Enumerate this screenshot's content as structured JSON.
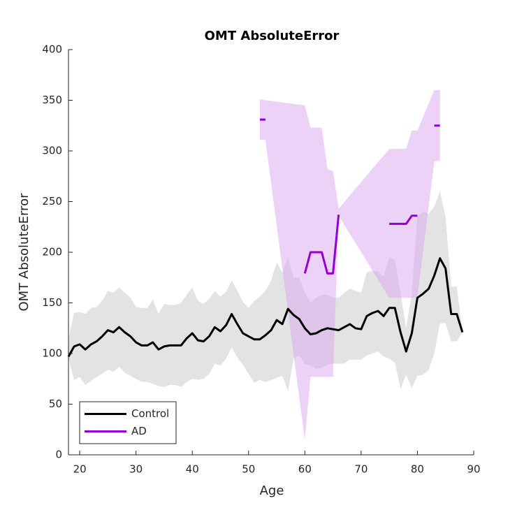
{
  "chart_data": {
    "type": "line",
    "title": "OMT AbsoluteError",
    "x_label": "Age",
    "y_label": "OMT AbsoluteError",
    "xlim": [
      18,
      90
    ],
    "ylim": [
      0,
      400
    ],
    "xticks": [
      20,
      30,
      40,
      50,
      60,
      70,
      80,
      90
    ],
    "yticks": [
      0,
      50,
      100,
      150,
      200,
      250,
      300,
      350,
      400
    ],
    "legend": "lower left",
    "series": [
      {
        "name": "Control",
        "color": "#000000",
        "band_color": "#c8c8c8",
        "x": [
          18,
          19,
          20,
          21,
          22,
          23,
          24,
          25,
          26,
          27,
          28,
          29,
          30,
          31,
          32,
          33,
          34,
          35,
          36,
          37,
          38,
          39,
          40,
          41,
          42,
          43,
          44,
          45,
          46,
          47,
          48,
          49,
          50,
          51,
          52,
          53,
          54,
          55,
          56,
          57,
          58,
          59,
          60,
          61,
          62,
          63,
          64,
          65,
          66,
          67,
          68,
          69,
          70,
          71,
          72,
          73,
          74,
          75,
          76,
          77,
          78,
          79,
          80,
          81,
          82,
          83,
          84,
          85,
          86,
          87,
          88
        ],
        "values": [
          97,
          107,
          109,
          104,
          109,
          112,
          117,
          123,
          121,
          126,
          121,
          117,
          111,
          108,
          108,
          111,
          104,
          107,
          108,
          108,
          108,
          115,
          120,
          113,
          112,
          117,
          126,
          122,
          128,
          139,
          129,
          120,
          117,
          114,
          114,
          118,
          123,
          133,
          129,
          144,
          138,
          134,
          125,
          119,
          120,
          123,
          125,
          124,
          123,
          126,
          129,
          125,
          124,
          137,
          140,
          142,
          137,
          145,
          145,
          121,
          102,
          120,
          155,
          159,
          164,
          177,
          194,
          184,
          139,
          139,
          121
        ],
        "upper": [
          115,
          140,
          141,
          139,
          145,
          146,
          152,
          162,
          160,
          165,
          160,
          155,
          146,
          145,
          145,
          153,
          139,
          149,
          148,
          148,
          150,
          158,
          165,
          152,
          149,
          154,
          162,
          156,
          161,
          172,
          162,
          151,
          145,
          152,
          156,
          162,
          172,
          190,
          180,
          195,
          175,
          175,
          160,
          150,
          155,
          158,
          158,
          155,
          155,
          160,
          164,
          162,
          160,
          180,
          182,
          181,
          176,
          195,
          192,
          160,
          125,
          160,
          235,
          240,
          238,
          245,
          260,
          235,
          166,
          166,
          121
        ],
        "lower": [
          95,
          74,
          77,
          69,
          73,
          77,
          80,
          84,
          82,
          87,
          81,
          78,
          75,
          72,
          72,
          70,
          68,
          67,
          69,
          69,
          67,
          72,
          75,
          74,
          75,
          80,
          90,
          88,
          95,
          106,
          96,
          89,
          80,
          71,
          74,
          72,
          74,
          76,
          78,
          63,
          95,
          98,
          90,
          88,
          85,
          86,
          89,
          90,
          90,
          90,
          94,
          94,
          94,
          98,
          100,
          102,
          97,
          95,
          91,
          65,
          79,
          66,
          78,
          79,
          84,
          100,
          130,
          130,
          112,
          112,
          121
        ]
      },
      {
        "name": "AD",
        "color": "#9400d3",
        "band_color": "#d9a6f0",
        "x": [
          52,
          53,
          54,
          55,
          56,
          57,
          58,
          59,
          60,
          61,
          62,
          63,
          64,
          65,
          66,
          67,
          68,
          69,
          70,
          71,
          72,
          73,
          74,
          75,
          76,
          77,
          78,
          79,
          80,
          81,
          82,
          83,
          84
        ],
        "values": [
          331,
          331,
          null,
          null,
          null,
          null,
          null,
          null,
          179,
          200,
          200,
          200,
          179,
          179,
          237,
          null,
          null,
          null,
          null,
          null,
          null,
          null,
          null,
          228,
          228,
          228,
          228,
          236,
          236,
          null,
          null,
          325,
          325
        ],
        "upper": [
          351,
          350,
          null,
          null,
          null,
          null,
          null,
          null,
          345,
          323,
          323,
          323,
          282,
          280,
          243,
          null,
          null,
          null,
          null,
          null,
          null,
          null,
          null,
          302,
          302,
          302,
          302,
          320,
          320,
          null,
          null,
          360,
          360
        ],
        "lower": [
          311,
          311,
          null,
          null,
          null,
          null,
          null,
          null,
          15,
          77,
          77,
          77,
          77,
          77,
          236,
          null,
          null,
          null,
          null,
          null,
          null,
          null,
          null,
          155,
          155,
          155,
          155,
          155,
          155,
          null,
          null,
          290,
          290
        ]
      }
    ]
  }
}
